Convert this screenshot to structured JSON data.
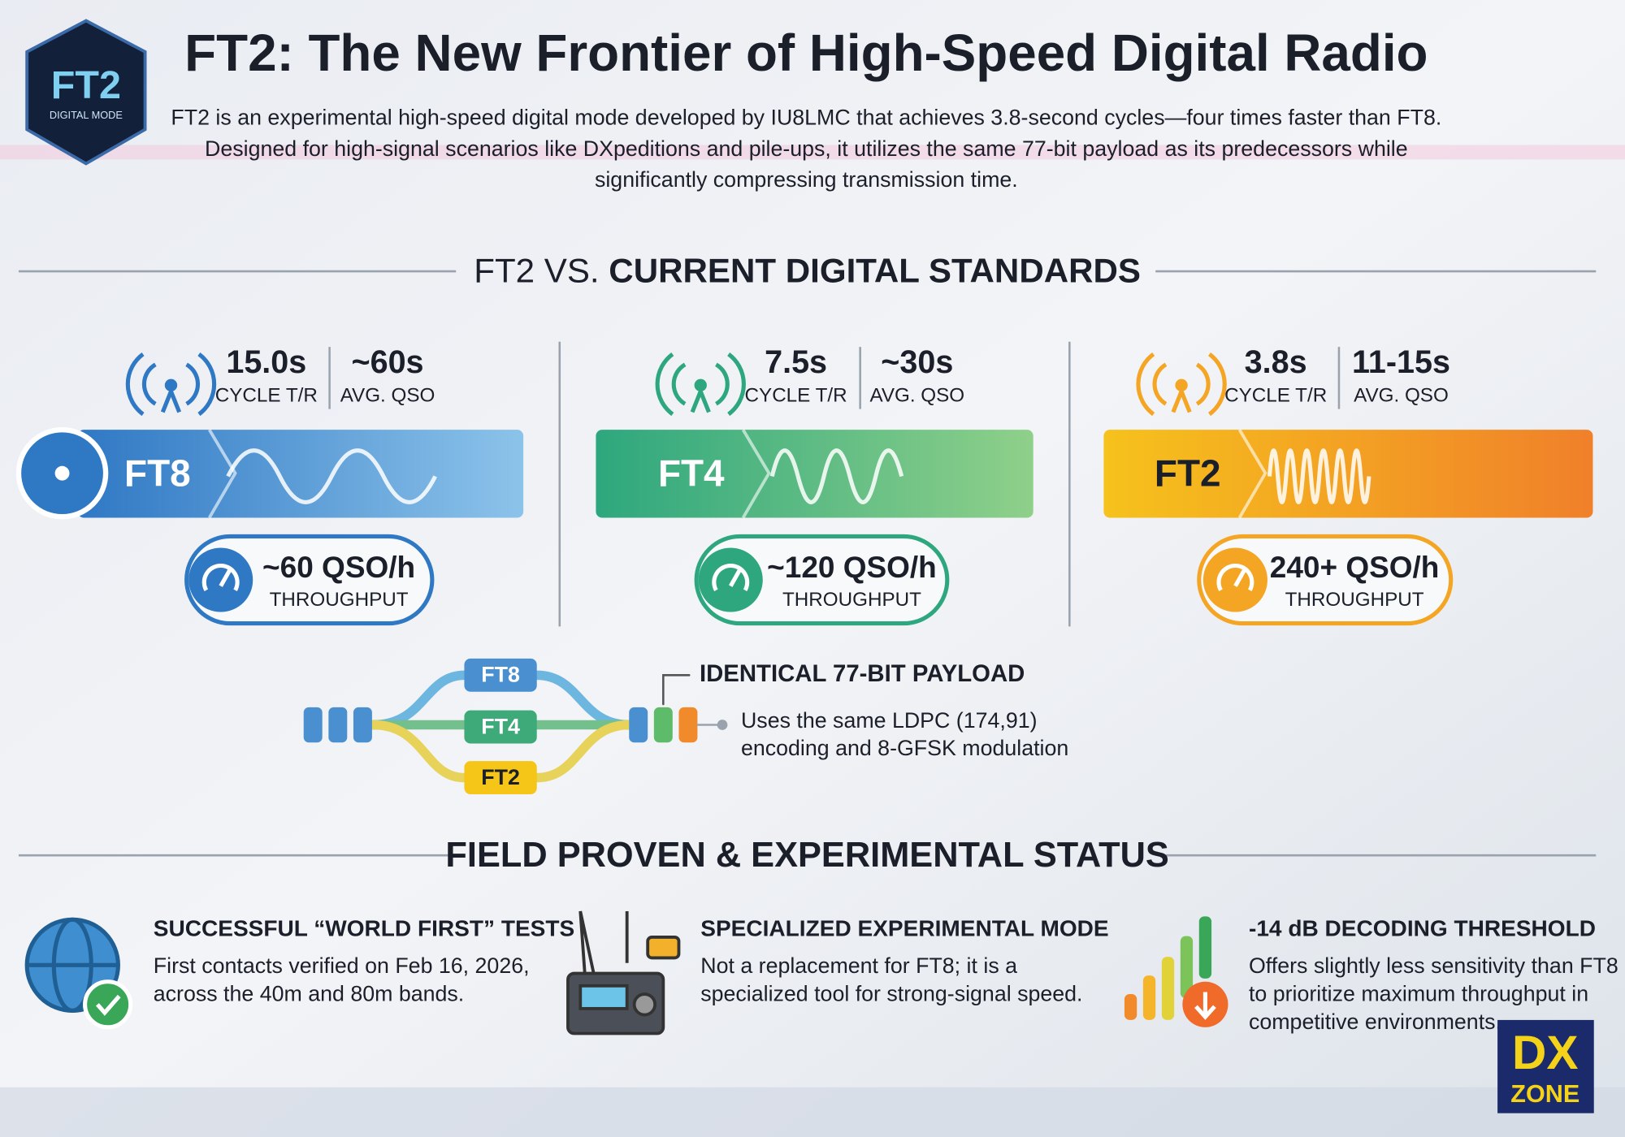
{
  "logo": {
    "title": "FT2",
    "subtitle": "DIGITAL MODE"
  },
  "header": {
    "title": "FT2: The New Frontier of High-Speed Digital Radio",
    "description": [
      "FT2 is an experimental high-speed digital mode developed by IU8LMC that achieves 3.8-second cycles—four times faster than FT8.",
      "Designed for high-signal scenarios like DXpeditions and pile-ups, it utilizes the same 77-bit payload as its predecessors while",
      "significantly compressing transmission time."
    ]
  },
  "comparison": {
    "heading_prefix": "FT2 VS.",
    "heading_main": "CURRENT DIGITAL STANDARDS",
    "modes": [
      {
        "name": "FT8",
        "cycle": "15.0s",
        "cycle_label": "CYCLE T/R",
        "qso": "~60s",
        "qso_label": "AVG. QSO",
        "throughput": "~60 QSO/h",
        "throughput_label": "THROUGHPUT"
      },
      {
        "name": "FT4",
        "cycle": "7.5s",
        "cycle_label": "CYCLE T/R",
        "qso": "~30s",
        "qso_label": "AVG. QSO",
        "throughput": "~120 QSO/h",
        "throughput_label": "THROUGHPUT"
      },
      {
        "name": "FT2",
        "cycle": "3.8s",
        "cycle_label": "CYCLE T/R",
        "qso": "11-15s",
        "qso_label": "AVG. QSO",
        "throughput": "240+ QSO/h",
        "throughput_label": "THROUGHPUT"
      }
    ]
  },
  "payload": {
    "modes": [
      "FT8",
      "FT4",
      "FT2"
    ],
    "title": "IDENTICAL 77-BIT PAYLOAD",
    "description": [
      "Uses the same LDPC (174,91)",
      "encoding and 8-GFSK modulation"
    ]
  },
  "status": {
    "heading": "FIELD PROVEN & EXPERIMENTAL STATUS",
    "items": [
      {
        "title": "SUCCESSFUL “WORLD FIRST” TESTS",
        "text": [
          "First contacts verified on Feb 16, 2026,",
          "across the 40m and 80m bands."
        ]
      },
      {
        "title": "SPECIALIZED EXPERIMENTAL MODE",
        "text": [
          "Not a replacement for FT8; it is a",
          "specialized tool for strong-signal speed."
        ]
      },
      {
        "title": "-14 dB DECODING THRESHOLD",
        "text": [
          "Offers slightly less sensitivity than FT8",
          "to prioritize maximum throughput in",
          "competitive environments."
        ]
      }
    ]
  },
  "badge": {
    "line1": "DX",
    "line2": "ZONE"
  }
}
